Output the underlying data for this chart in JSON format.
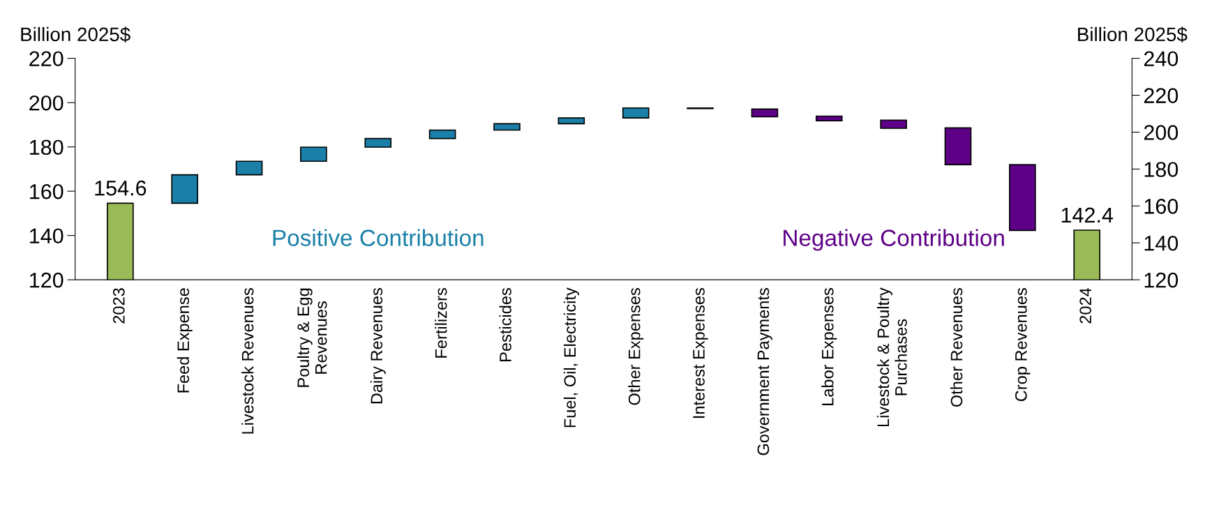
{
  "chart_data": {
    "type": "bar",
    "categories": [
      "2023",
      "Feed Expense",
      "Livestock Revenues",
      "Poultry & Egg\nRevenues",
      "Dairy Revenues",
      "Fertilizers",
      "Pesticides",
      "Fuel, Oil, Electricity",
      "Other Expenses",
      "Interest Expenses",
      "Government Payments",
      "Labor Expenses",
      "Livestock & Poultry\nPurchases",
      "Other Revenues",
      "Crop Revenues",
      "2024"
    ],
    "series": [
      {
        "color": "#9bbb59",
        "values": [
          154.6,
          null,
          null,
          null,
          null,
          null,
          null,
          null,
          null,
          null,
          null,
          null,
          null,
          null,
          null,
          142.4
        ],
        "value_labels": [
          "154.6",
          null,
          null,
          null,
          null,
          null,
          null,
          null,
          null,
          null,
          null,
          null,
          null,
          null,
          null,
          "142.4"
        ]
      },
      {
        "name": "Positive Contribution",
        "color": "#1a80a8",
        "values": [
          null,
          12.8,
          6.1,
          6.4,
          3.9,
          3.8,
          2.9,
          2.6,
          4.5,
          0.3,
          null,
          null,
          null,
          null,
          null,
          null
        ],
        "base": [
          null,
          154.6,
          167.4,
          173.5,
          179.9,
          183.8,
          187.6,
          190.5,
          193.1,
          197.3,
          null,
          null,
          null,
          null,
          null,
          null
        ]
      },
      {
        "name": "Negative Contribution",
        "color": "#5e0087",
        "values": [
          null,
          null,
          null,
          null,
          null,
          null,
          null,
          null,
          null,
          null,
          -3.5,
          -2.1,
          -3.7,
          -16.6,
          -29.7,
          null
        ],
        "base": [
          null,
          null,
          null,
          null,
          null,
          null,
          null,
          null,
          null,
          null,
          197.1,
          193.9,
          192.1,
          188.6,
          172.0,
          null
        ]
      }
    ],
    "ylabel": "Billion 2025$",
    "y2label": "Billion 2025$",
    "ylim": [
      120,
      220
    ],
    "yticks": [
      120,
      140,
      160,
      180,
      200,
      220
    ],
    "y2lim": [
      120,
      240
    ],
    "y2ticks": [
      120,
      140,
      160,
      180,
      200,
      220,
      240
    ],
    "grid": false,
    "legend": false
  }
}
